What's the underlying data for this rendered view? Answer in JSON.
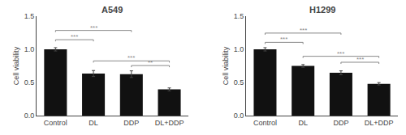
{
  "chart_data": [
    {
      "type": "bar",
      "title": "A549",
      "categories": [
        "Control",
        "DL",
        "DDP",
        "DL+DDP"
      ],
      "values": [
        1.0,
        0.635,
        0.625,
        0.395
      ],
      "errors": [
        0.025,
        0.045,
        0.05,
        0.022
      ],
      "ylabel": "Cell viability",
      "ylim": [
        0,
        1.5
      ],
      "yticks": [
        {
          "value": 0.0,
          "label": "0.0"
        },
        0.5,
        {
          "value": 1.0,
          "label": "1.0"
        },
        1.5
      ],
      "color": "#111111",
      "grid": false,
      "bracket_height": 0.025,
      "significance": [
        {
          "x1": "Control",
          "x2": "DL",
          "y": 1.12,
          "label": "***",
          "color": "#888888"
        },
        {
          "x1": "Control",
          "x2": "DDP",
          "y": 1.26,
          "label": "***",
          "color": "#888888"
        },
        {
          "x1": "DL",
          "x2": "DL+DDP",
          "y": 0.8,
          "label": "***",
          "color": "#888888"
        },
        {
          "x1": "DDP",
          "x2": "DL+DDP",
          "y": 0.73,
          "label": "**",
          "color": "#888888"
        }
      ]
    },
    {
      "type": "bar",
      "title": "H1299",
      "categories": [
        "Control",
        "DL",
        "DDP",
        "DL+DDP"
      ],
      "values": [
        1.0,
        0.75,
        0.645,
        0.48
      ],
      "errors": [
        0.025,
        0.02,
        0.03,
        0.018
      ],
      "ylabel": "Cell viability",
      "ylim": [
        0,
        1.5
      ],
      "yticks": [
        {
          "value": 0.0,
          "label": "0.0"
        },
        0.5,
        {
          "value": 1.0,
          "label": "1.0"
        },
        1.5
      ],
      "color": "#111111",
      "grid": false,
      "bracket_height": 0.025,
      "significance": [
        {
          "x1": "Control",
          "x2": "DL",
          "y": 1.08,
          "label": "***",
          "color": "#888888"
        },
        {
          "x1": "Control",
          "x2": "DDP",
          "y": 1.22,
          "label": "***",
          "color": "#888888"
        },
        {
          "x1": "DL",
          "x2": "DL+DDP",
          "y": 0.87,
          "label": "***",
          "color": "#888888"
        },
        {
          "x1": "DDP",
          "x2": "DL+DDP",
          "y": 0.78,
          "label": "***",
          "color": "#888888"
        }
      ]
    }
  ]
}
